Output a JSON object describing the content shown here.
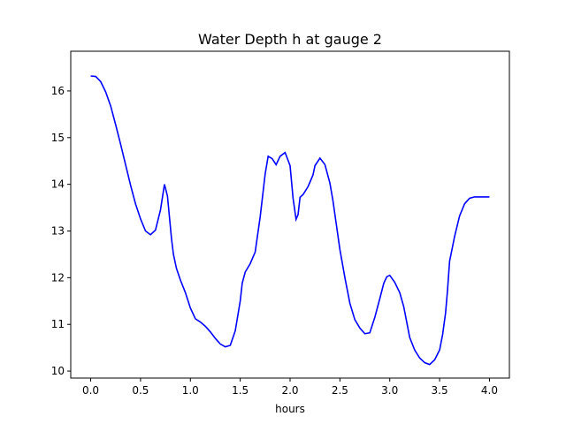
{
  "chart_data": {
    "type": "line",
    "title": "Water Depth h at gauge 2",
    "xlabel": "hours",
    "ylabel": "",
    "xlim": [
      -0.2,
      4.2
    ],
    "ylim": [
      9.85,
      16.85
    ],
    "xticks": [
      0.0,
      0.5,
      1.0,
      1.5,
      2.0,
      2.5,
      3.0,
      3.5,
      4.0
    ],
    "xtick_labels": [
      "0.0",
      "0.5",
      "1.0",
      "1.5",
      "2.0",
      "2.5",
      "3.0",
      "3.5",
      "4.0"
    ],
    "yticks": [
      10,
      11,
      12,
      13,
      14,
      15,
      16
    ],
    "ytick_labels": [
      "10",
      "11",
      "12",
      "13",
      "14",
      "15",
      "16"
    ],
    "grid": false,
    "legend": "none",
    "series": [
      {
        "color": "#0000ff",
        "x": [
          0.0,
          0.05,
          0.1,
          0.15,
          0.2,
          0.25,
          0.3,
          0.35,
          0.4,
          0.45,
          0.5,
          0.55,
          0.6,
          0.65,
          0.7,
          0.74,
          0.77,
          0.79,
          0.81,
          0.83,
          0.86,
          0.9,
          0.95,
          1.0,
          1.05,
          1.1,
          1.15,
          1.2,
          1.25,
          1.3,
          1.35,
          1.4,
          1.45,
          1.5,
          1.52,
          1.55,
          1.6,
          1.65,
          1.7,
          1.75,
          1.78,
          1.82,
          1.86,
          1.9,
          1.95,
          2.0,
          2.03,
          2.06,
          2.08,
          2.1,
          2.13,
          2.16,
          2.18,
          2.2,
          2.23,
          2.25,
          2.3,
          2.35,
          2.4,
          2.43,
          2.46,
          2.5,
          2.55,
          2.6,
          2.65,
          2.7,
          2.75,
          2.8,
          2.85,
          2.9,
          2.94,
          2.97,
          3.0,
          3.05,
          3.1,
          3.14,
          3.17,
          3.2,
          3.25,
          3.3,
          3.35,
          3.4,
          3.45,
          3.5,
          3.53,
          3.56,
          3.58,
          3.6,
          3.65,
          3.7,
          3.75,
          3.8,
          3.85,
          3.9,
          3.95,
          4.0
        ],
        "y": [
          16.32,
          16.31,
          16.2,
          15.98,
          15.68,
          15.28,
          14.86,
          14.42,
          13.98,
          13.58,
          13.26,
          13.0,
          12.92,
          13.02,
          13.45,
          14.0,
          13.75,
          13.3,
          12.85,
          12.5,
          12.2,
          11.95,
          11.68,
          11.35,
          11.12,
          11.05,
          10.96,
          10.84,
          10.7,
          10.58,
          10.52,
          10.55,
          10.86,
          11.5,
          11.88,
          12.12,
          12.3,
          12.55,
          13.3,
          14.22,
          14.6,
          14.55,
          14.42,
          14.6,
          14.68,
          14.4,
          13.7,
          13.25,
          13.35,
          13.72,
          13.78,
          13.88,
          13.95,
          14.05,
          14.2,
          14.4,
          14.56,
          14.42,
          14.02,
          13.65,
          13.2,
          12.6,
          12.0,
          11.45,
          11.1,
          10.92,
          10.8,
          10.82,
          11.15,
          11.55,
          11.88,
          12.02,
          12.05,
          11.9,
          11.68,
          11.38,
          11.05,
          10.72,
          10.45,
          10.28,
          10.18,
          10.14,
          10.24,
          10.45,
          10.78,
          11.25,
          11.75,
          12.35,
          12.88,
          13.32,
          13.58,
          13.7,
          13.73,
          13.73,
          13.73,
          13.73
        ]
      }
    ]
  }
}
